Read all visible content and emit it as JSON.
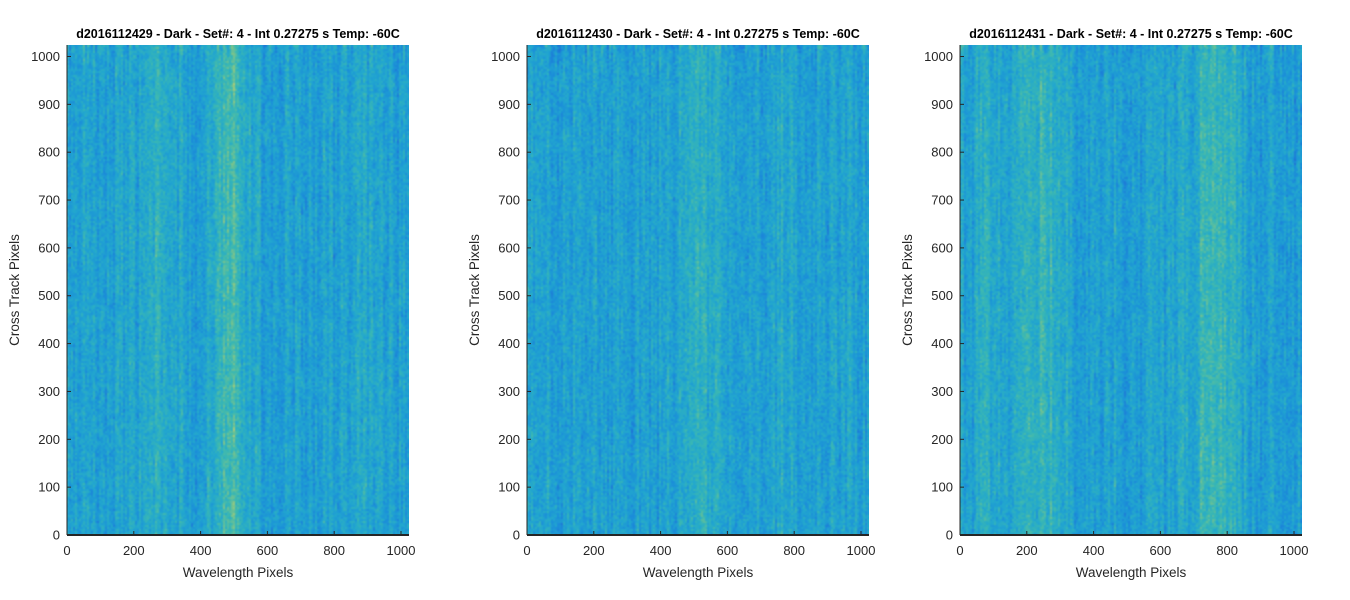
{
  "chart_data": [
    {
      "type": "heatmap",
      "title": "d2016112429 - Dark - Set#: 4 - Int 0.27275 s Temp: -60C",
      "xlabel": "Wavelength Pixels",
      "ylabel": "Cross Track Pixels",
      "xlim": [
        0,
        1024
      ],
      "ylim": [
        0,
        1024
      ],
      "xticks": [
        0,
        200,
        400,
        600,
        800,
        1000
      ],
      "yticks": [
        0,
        100,
        200,
        300,
        400,
        500,
        600,
        700,
        800,
        900,
        1000
      ],
      "grid": false,
      "colormap": [
        "#1f6fd6",
        "#1b8fd9",
        "#22a7cf",
        "#3bb8b2",
        "#7dc48a",
        "#c9d16a"
      ],
      "bright_bands": [
        {
          "center_x": 490,
          "width_x": 70,
          "strength": 0.85
        },
        {
          "center_x": 270,
          "width_x": 80,
          "strength": 0.3
        },
        {
          "center_x": 870,
          "width_x": 60,
          "strength": 0.15
        }
      ]
    },
    {
      "type": "heatmap",
      "title": "d2016112430 - Dark - Set#: 4 - Int 0.27275 s Temp: -60C",
      "xlabel": "Wavelength Pixels",
      "ylabel": "Cross Track Pixels",
      "xlim": [
        0,
        1024
      ],
      "ylim": [
        0,
        1024
      ],
      "xticks": [
        0,
        200,
        400,
        600,
        800,
        1000
      ],
      "yticks": [
        0,
        100,
        200,
        300,
        400,
        500,
        600,
        700,
        800,
        900,
        1000
      ],
      "grid": false,
      "colormap": [
        "#1f6fd6",
        "#1b8fd9",
        "#22a7cf",
        "#3bb8b2",
        "#7dc48a",
        "#c9d16a"
      ],
      "bright_bands": [
        {
          "center_x": 520,
          "width_x": 90,
          "strength": 0.3
        },
        {
          "center_x": 780,
          "width_x": 60,
          "strength": 0.2
        }
      ]
    },
    {
      "type": "heatmap",
      "title": "d2016112431 - Dark - Set#: 4 - Int 0.27275 s Temp: -60C",
      "xlabel": "Wavelength Pixels",
      "ylabel": "Cross Track Pixels",
      "xlim": [
        0,
        1024
      ],
      "ylim": [
        0,
        1024
      ],
      "xticks": [
        0,
        200,
        400,
        600,
        800,
        1000
      ],
      "yticks": [
        0,
        100,
        200,
        300,
        400,
        500,
        600,
        700,
        800,
        900,
        1000
      ],
      "grid": false,
      "colormap": [
        "#1f6fd6",
        "#1b8fd9",
        "#22a7cf",
        "#3bb8b2",
        "#7dc48a",
        "#c9d16a"
      ],
      "bright_bands": [
        {
          "center_x": 250,
          "width_x": 90,
          "strength": 0.6
        },
        {
          "center_x": 760,
          "width_x": 110,
          "strength": 0.55
        },
        {
          "center_x": 80,
          "width_x": 60,
          "strength": 0.3
        }
      ]
    }
  ]
}
